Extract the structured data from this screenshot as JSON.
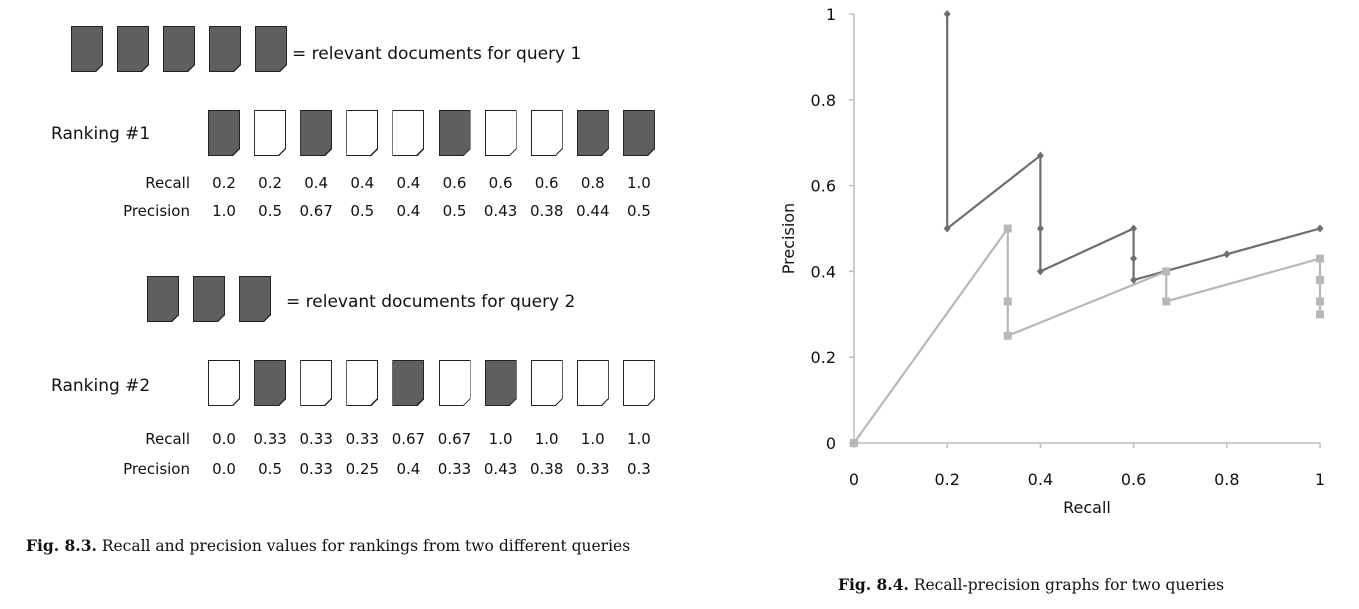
{
  "figure_8_3": {
    "query1": {
      "relevant_count": 5,
      "legend": "= relevant documents for query 1",
      "ranking_title": "Ranking #1",
      "relevance": [
        1,
        0,
        1,
        0,
        0,
        1,
        0,
        0,
        1,
        1
      ],
      "recall_label": "Recall",
      "precision_label": "Precision",
      "recall": [
        "0.2",
        "0.2",
        "0.4",
        "0.4",
        "0.4",
        "0.6",
        "0.6",
        "0.6",
        "0.8",
        "1.0"
      ],
      "precision": [
        "1.0",
        "0.5",
        "0.67",
        "0.5",
        "0.4",
        "0.5",
        "0.43",
        "0.38",
        "0.44",
        "0.5"
      ]
    },
    "query2": {
      "relevant_count": 3,
      "legend": "= relevant documents for query 2",
      "ranking_title": "Ranking #2",
      "relevance": [
        0,
        1,
        0,
        0,
        1,
        0,
        1,
        0,
        0,
        0
      ],
      "recall_label": "Recall",
      "precision_label": "Precision",
      "recall": [
        "0.0",
        "0.33",
        "0.33",
        "0.33",
        "0.67",
        "0.67",
        "1.0",
        "1.0",
        "1.0",
        "1.0"
      ],
      "precision": [
        "0.0",
        "0.5",
        "0.33",
        "0.25",
        "0.4",
        "0.33",
        "0.43",
        "0.38",
        "0.33",
        "0.3"
      ]
    },
    "caption_num": "Fig. 8.3.",
    "caption_text": " Recall and precision values for rankings from two different queries"
  },
  "chart_data": {
    "type": "line",
    "title": "",
    "xlabel": "Recall",
    "ylabel": "Precision",
    "xlim": [
      0,
      1
    ],
    "ylim": [
      0,
      1
    ],
    "xticks": [
      "0",
      "0.2",
      "0.4",
      "0.6",
      "0.8",
      "1"
    ],
    "yticks": [
      "0",
      "0.2",
      "0.4",
      "0.6",
      "0.8",
      "1"
    ],
    "grid": false,
    "series": [
      {
        "color": "#6e6e6e",
        "marker": "diamond",
        "points": [
          [
            0.2,
            1.0
          ],
          [
            0.2,
            0.5
          ],
          [
            0.4,
            0.67
          ],
          [
            0.4,
            0.5
          ],
          [
            0.4,
            0.4
          ],
          [
            0.6,
            0.5
          ],
          [
            0.6,
            0.43
          ],
          [
            0.6,
            0.38
          ],
          [
            0.8,
            0.44
          ],
          [
            1.0,
            0.5
          ]
        ]
      },
      {
        "color": "#b8b8b8",
        "marker": "square",
        "points": [
          [
            0.0,
            0.0
          ],
          [
            0.33,
            0.5
          ],
          [
            0.33,
            0.33
          ],
          [
            0.33,
            0.25
          ],
          [
            0.67,
            0.4
          ],
          [
            0.67,
            0.33
          ],
          [
            1.0,
            0.43
          ],
          [
            1.0,
            0.38
          ],
          [
            1.0,
            0.33
          ],
          [
            1.0,
            0.3
          ]
        ]
      }
    ],
    "caption_num": "Fig. 8.4.",
    "caption_text": " Recall-precision graphs for two queries"
  }
}
